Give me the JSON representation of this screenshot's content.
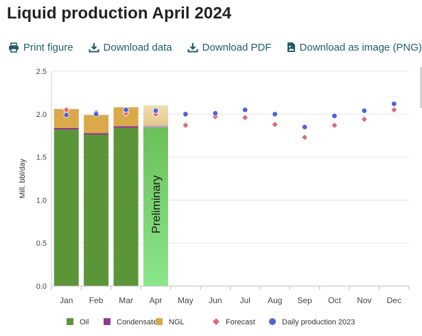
{
  "page": {
    "title": "Liquid production April 2024"
  },
  "toolbar": {
    "print_label": "Print figure",
    "download_data_label": "Download data",
    "download_pdf_label": "Download PDF",
    "download_png_label": "Download as image (PNG)"
  },
  "colors": {
    "oil": "#5a9637",
    "oil_preliminary": "#8be68b",
    "condensate": "#8e3a8e",
    "ngl": "#d9a94a",
    "ngl_preliminary": "#f0dcb0",
    "forecast": "#d96a78",
    "daily_2023": "#5263d8",
    "toolbar_text": "#1f5e66"
  },
  "chart_data": {
    "type": "bar",
    "ylabel": "Mill. bbl/day",
    "ylim": [
      0,
      2.5
    ],
    "yticks": [
      "0.0",
      "0.5",
      "1.0",
      "1.5",
      "2.0",
      "2.5"
    ],
    "categories": [
      "Jan",
      "Feb",
      "Mar",
      "Apr",
      "May",
      "Jun",
      "Jul",
      "Aug",
      "Sep",
      "Oct",
      "Nov",
      "Dec"
    ],
    "preliminary_label": "Preliminary",
    "preliminary_index": 3,
    "series": [
      {
        "name": "Oil",
        "values": [
          1.82,
          1.76,
          1.84,
          1.85,
          null,
          null,
          null,
          null,
          null,
          null,
          null,
          null
        ]
      },
      {
        "name": "Condensate",
        "values": [
          0.02,
          0.02,
          0.02,
          0.02,
          null,
          null,
          null,
          null,
          null,
          null,
          null,
          null
        ]
      },
      {
        "name": "NGL",
        "values": [
          0.22,
          0.21,
          0.22,
          0.23,
          null,
          null,
          null,
          null,
          null,
          null,
          null,
          null
        ]
      },
      {
        "name": "Forecast",
        "values": [
          2.05,
          2.02,
          2.01,
          2.0,
          1.87,
          1.97,
          1.96,
          1.88,
          1.73,
          1.87,
          1.94,
          2.05
        ]
      },
      {
        "name": "Daily production 2023",
        "values": [
          1.99,
          2.0,
          2.05,
          2.04,
          2.0,
          2.01,
          2.05,
          2.0,
          1.85,
          1.98,
          2.04,
          2.12
        ]
      }
    ],
    "legend": [
      "Oil",
      "Condensate",
      "NGL",
      "Forecast",
      "Daily production 2023"
    ],
    "legend_position": "bottom",
    "grid": true
  }
}
